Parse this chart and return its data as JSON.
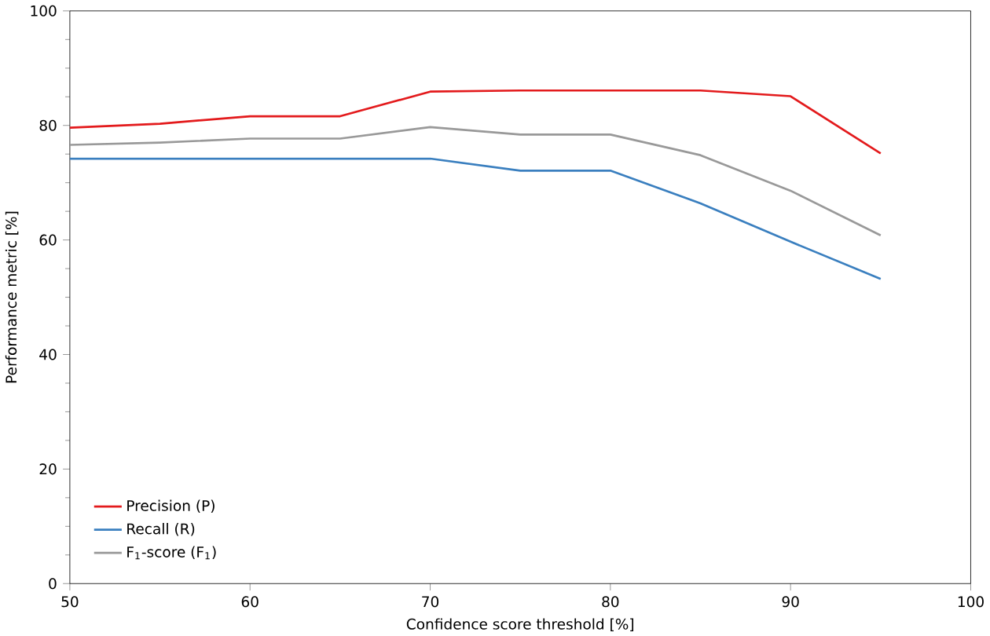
{
  "chart_data": {
    "type": "line",
    "xlabel": "Confidence score threshold [%]",
    "ylabel": "Performance metric [%]",
    "x": [
      50,
      55,
      60,
      65,
      70,
      75,
      80,
      85,
      90,
      95
    ],
    "series": [
      {
        "name": "Precision (P)",
        "color": "#e31a1c",
        "values": [
          79.6,
          80.3,
          81.6,
          81.6,
          85.9,
          86.1,
          86.1,
          86.1,
          85.1,
          75.1
        ]
      },
      {
        "name": "Recall (R)",
        "color": "#3a7fbf",
        "values": [
          74.2,
          74.2,
          74.2,
          74.2,
          74.2,
          72.1,
          72.1,
          66.4,
          59.7,
          53.2
        ]
      },
      {
        "name": "F$_{1}$-score (F$_{1}$)",
        "color": "#999999",
        "values": [
          76.6,
          77.0,
          77.7,
          77.7,
          79.7,
          78.4,
          78.4,
          74.8,
          68.6,
          60.8
        ]
      }
    ],
    "xlim": [
      50,
      100
    ],
    "ylim": [
      0,
      100
    ],
    "xticks": [
      50,
      60,
      70,
      80,
      90,
      100
    ],
    "yticks": [
      0,
      20,
      40,
      60,
      80,
      100
    ],
    "legend": "bottom left",
    "grid": false,
    "marker": "none",
    "line_style": "solid"
  }
}
